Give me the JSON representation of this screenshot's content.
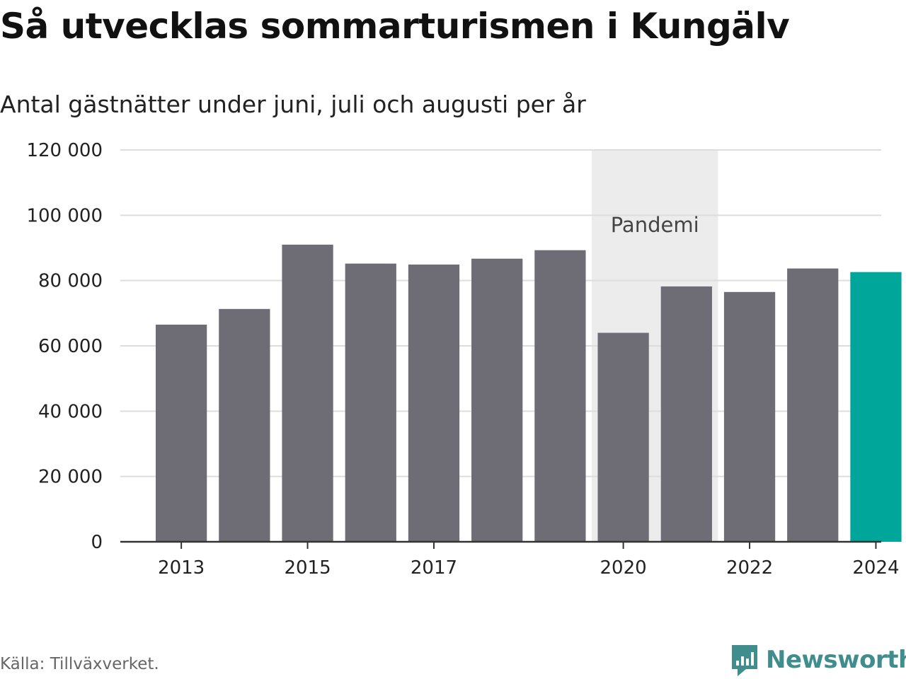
{
  "header": {
    "title": "Så utvecklas sommarturismen i Kungälv",
    "subtitle": "Antal gästnätter under juni, juli och augusti per år"
  },
  "footer": {
    "source": "Källa: Tillväxverket.",
    "brand": "Newsworthy"
  },
  "colors": {
    "bar": "#6e6d75",
    "highlight": "#00a69a",
    "band": "#ececec",
    "grid": "#dddddd",
    "axis": "#333333",
    "brand": "#3f8d8d"
  },
  "chart_data": {
    "type": "bar",
    "title": "Så utvecklas sommarturismen i Kungälv",
    "subtitle": "Antal gästnätter under juni, juli och augusti per år",
    "categories": [
      "2013",
      "2014",
      "2015",
      "2016",
      "2017",
      "2018",
      "2019",
      "2020",
      "2021",
      "2022",
      "2023",
      "2024"
    ],
    "values": [
      66500,
      71300,
      91000,
      85200,
      84900,
      86700,
      89300,
      64000,
      78200,
      76500,
      83700,
      82600
    ],
    "highlight_index": 11,
    "x_tick_labels": [
      "2013",
      "2015",
      "2017",
      "2020",
      "2022",
      "2024"
    ],
    "y_ticks": [
      0,
      20000,
      40000,
      60000,
      80000,
      100000,
      120000
    ],
    "y_tick_labels": [
      "0",
      "20 000",
      "40 000",
      "60 000",
      "80 000",
      "100 000",
      "120 000"
    ],
    "ylim": [
      0,
      120000
    ],
    "grid": true,
    "legend": "none",
    "annotations": [
      {
        "type": "band",
        "label": "Pandemi",
        "from": "2020",
        "to": "2021"
      }
    ]
  }
}
